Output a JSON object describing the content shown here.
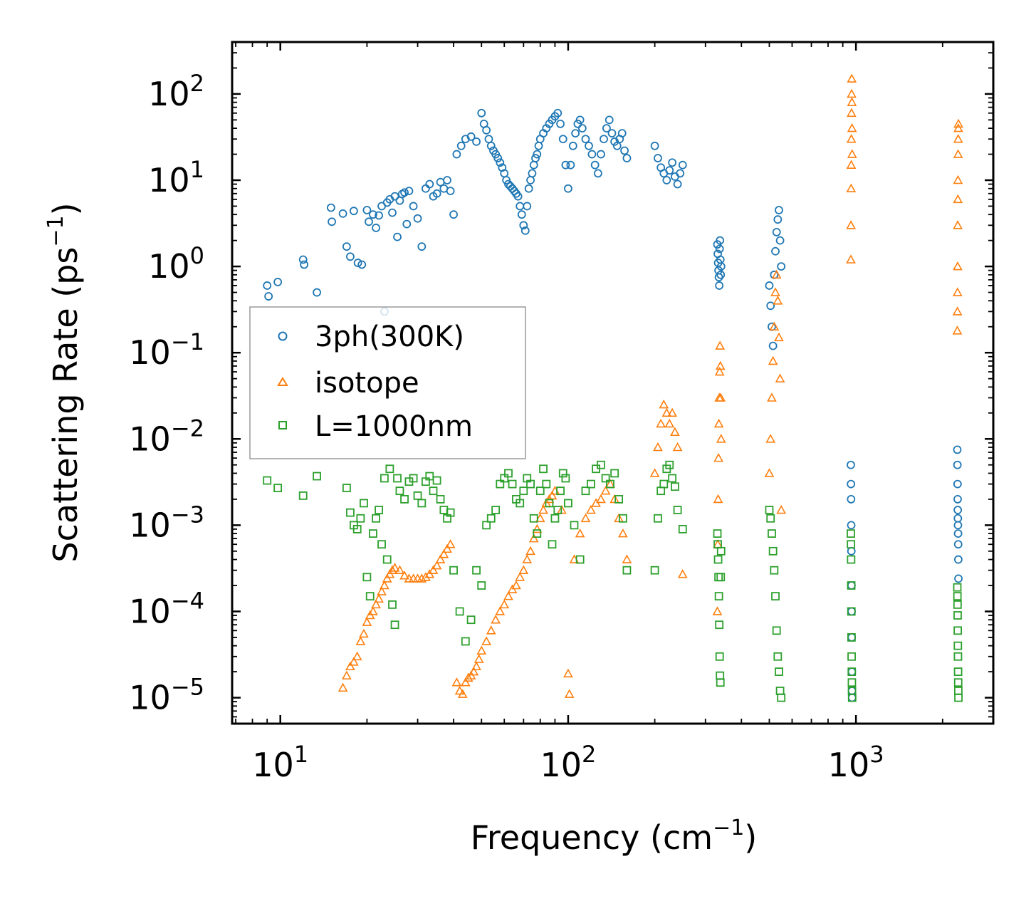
{
  "chart_data": {
    "type": "scatter",
    "title": "",
    "xlabel": "Frequency (cm$^{-1}$)",
    "xlabel_main": "Frequency (cm",
    "xlabel_sup": "−1",
    "xlabel_end": ")",
    "ylabel_main": "Scattering Rate (ps",
    "ylabel_sup": "−1",
    "ylabel_end": ")",
    "x_scale": "log",
    "y_scale": "log",
    "xlim": [
      6.8,
      3000
    ],
    "ylim": [
      5e-06,
      400
    ],
    "x_ticks": [
      {
        "base": "10",
        "exp": "1",
        "value": 10
      },
      {
        "base": "10",
        "exp": "2",
        "value": 100
      },
      {
        "base": "10",
        "exp": "3",
        "value": 1000
      }
    ],
    "y_ticks": [
      {
        "base": "10",
        "exp": "−5",
        "value": 1e-05
      },
      {
        "base": "10",
        "exp": "−4",
        "value": 0.0001
      },
      {
        "base": "10",
        "exp": "−3",
        "value": 0.001
      },
      {
        "base": "10",
        "exp": "−2",
        "value": 0.01
      },
      {
        "base": "10",
        "exp": "−1",
        "value": 0.1
      },
      {
        "base": "10",
        "exp": "0",
        "value": 1
      },
      {
        "base": "10",
        "exp": "1",
        "value": 10
      },
      {
        "base": "10",
        "exp": "2",
        "value": 100
      }
    ],
    "legend_position": "center-left",
    "series": [
      {
        "name": "3ph(300K)",
        "marker": "circle",
        "color": "#1f77b4",
        "x": [
          9.0,
          9.1,
          9.8,
          12.0,
          12.1,
          13.4,
          15.0,
          15.1,
          16.5,
          17.0,
          17.5,
          18.0,
          18.6,
          19.2,
          20.0,
          20.3,
          21.0,
          21.5,
          22.0,
          22.5,
          23.0,
          23.5,
          24.0,
          24.5,
          25.0,
          25.5,
          26.0,
          26.5,
          27.0,
          27.5,
          28.0,
          29.0,
          30.0,
          31.0,
          32.0,
          33.0,
          34.0,
          35.0,
          36.0,
          37.0,
          38.0,
          39.0,
          40.0,
          41.0,
          42.5,
          44.0,
          46.0,
          48.0,
          50.0,
          51.0,
          52.0,
          53.0,
          54.0,
          55.0,
          56.0,
          57.0,
          58.0,
          59.0,
          60.0,
          61.0,
          62.0,
          63.0,
          64.0,
          65.0,
          66.0,
          67.0,
          68.0,
          69.0,
          70.0,
          71.0,
          72.0,
          73.0,
          74.0,
          75.0,
          76.0,
          77.0,
          78.0,
          79.0,
          80.0,
          82.0,
          84.0,
          86.0,
          88.0,
          90.0,
          92.0,
          94.0,
          96.0,
          98.0,
          100.0,
          102.0,
          104.0,
          106.0,
          108.0,
          110.0,
          112.0,
          115.0,
          118.0,
          121.0,
          124.0,
          127.0,
          130.0,
          133.0,
          136.0,
          139.0,
          142.0,
          145.0,
          148.0,
          151.0,
          154.0,
          157.0,
          160.0,
          200.0,
          205.0,
          210.0,
          215.0,
          220.0,
          225.0,
          230.0,
          235.0,
          240.0,
          245.0,
          250.0,
          330.0,
          331.0,
          332.0,
          333.0,
          334.0,
          335.0,
          336.0,
          337.0,
          338.0,
          339.0,
          340.0,
          500.0,
          505.0,
          510.0,
          515.0,
          520.0,
          525.0,
          530.0,
          535.0,
          540.0,
          545.0,
          550.0,
          960.0,
          961.0,
          962.0,
          963.0,
          964.0,
          965.0,
          966.0,
          967.0,
          968.0,
          969.0,
          970.0,
          2250.0,
          2252.0,
          2254.0,
          2256.0,
          2258.0,
          2260.0,
          2262.0,
          2264.0,
          2266.0,
          2268.0,
          2270.0
        ],
        "y": [
          0.6,
          0.45,
          0.66,
          1.2,
          1.05,
          0.5,
          4.8,
          3.3,
          4.1,
          1.7,
          1.3,
          4.4,
          1.1,
          1.05,
          4.5,
          3.3,
          4.0,
          2.8,
          3.9,
          5.0,
          0.3,
          5.5,
          6.0,
          4.2,
          6.5,
          2.2,
          5.8,
          6.9,
          7.2,
          3.1,
          7.5,
          5.0,
          3.6,
          1.7,
          8.0,
          9.0,
          6.5,
          7.0,
          9.5,
          8.0,
          10.0,
          7.5,
          4.0,
          20.0,
          25.0,
          30.0,
          32.0,
          28.0,
          60.0,
          45.0,
          38.0,
          30.0,
          25.0,
          22.0,
          20.0,
          18.0,
          16.0,
          14.0,
          12.0,
          10.0,
          9.0,
          8.5,
          8.0,
          7.5,
          7.0,
          6.5,
          5.0,
          4.0,
          3.0,
          2.6,
          5.0,
          8.0,
          10.0,
          12.0,
          15.0,
          18.0,
          20.0,
          25.0,
          30.0,
          35.0,
          40.0,
          45.0,
          50.0,
          55.0,
          60.0,
          45.0,
          30.0,
          15.0,
          8.0,
          15.0,
          25.0,
          35.0,
          45.0,
          50.0,
          40.0,
          30.0,
          25.0,
          20.0,
          15.0,
          12.0,
          20.0,
          30.0,
          40.0,
          50.0,
          35.0,
          28.0,
          25.0,
          30.0,
          35.0,
          22.0,
          18.0,
          25.0,
          18.0,
          14.0,
          12.0,
          10.0,
          13.0,
          16.0,
          11.0,
          9.0,
          12.0,
          15.0,
          1.8,
          1.4,
          1.1,
          0.9,
          0.75,
          0.6,
          1.6,
          2.0,
          1.2,
          0.8,
          1.0,
          0.6,
          0.35,
          0.2,
          0.12,
          0.8,
          1.5,
          2.5,
          3.5,
          4.5,
          2.0,
          1.0,
          0.005,
          0.003,
          0.002,
          0.001,
          0.0005,
          0.0002,
          0.0001,
          5e-05,
          2e-05,
          1.2e-05,
          1e-05,
          0.0075,
          0.005,
          0.003,
          0.002,
          0.0015,
          0.0012,
          0.001,
          0.0008,
          0.0006,
          0.0004,
          0.00024
        ]
      },
      {
        "name": "isotope",
        "marker": "triangle",
        "color": "#ff7f0e",
        "x": [
          16.5,
          17.0,
          17.5,
          18.0,
          18.5,
          19.0,
          19.5,
          20.0,
          20.5,
          21.0,
          21.5,
          22.0,
          22.5,
          23.0,
          23.5,
          24.0,
          24.5,
          25.0,
          26.0,
          27.0,
          28.0,
          29.0,
          30.0,
          31.0,
          32.0,
          33.0,
          34.0,
          35.0,
          36.0,
          37.0,
          38.0,
          39.0,
          41.0,
          42.0,
          43.0,
          44.0,
          45.0,
          46.0,
          47.0,
          48.0,
          49.0,
          50.0,
          52.0,
          54.0,
          56.0,
          58.0,
          60.0,
          62.0,
          64.0,
          66.0,
          68.0,
          70.0,
          72.0,
          74.0,
          76.0,
          78.0,
          80.0,
          82.0,
          84.0,
          86.0,
          88.0,
          90.0,
          95.0,
          100.0,
          101.0,
          105.0,
          110.0,
          115.0,
          120.0,
          125.0,
          130.0,
          135.0,
          140.0,
          145.0,
          150.0,
          155.0,
          160.0,
          200.0,
          205.0,
          210.0,
          215.0,
          220.0,
          225.0,
          230.0,
          235.0,
          240.0,
          250.0,
          330.0,
          331.0,
          332.0,
          333.0,
          334.0,
          335.0,
          336.0,
          337.0,
          338.0,
          339.0,
          340.0,
          500.0,
          505.0,
          510.0,
          515.0,
          520.0,
          525.0,
          530.0,
          535.0,
          540.0,
          545.0,
          550.0,
          960.0,
          961.0,
          962.0,
          963.0,
          964.0,
          965.0,
          966.0,
          967.0,
          968.0,
          969.0,
          970.0,
          2250.0,
          2252.0,
          2254.0,
          2256.0,
          2258.0,
          2260.0,
          2262.0,
          2264.0,
          2266.0,
          2268.0,
          2270.0
        ],
        "y": [
          1.3e-05,
          1.8e-05,
          2.3e-05,
          2.6e-05,
          3e-05,
          4.5e-05,
          5.5e-05,
          7.5e-05,
          9e-05,
          0.0001,
          0.00012,
          0.00014,
          0.00017,
          0.0002,
          0.00024,
          0.00027,
          0.0003,
          0.00032,
          0.0003,
          0.00026,
          0.00024,
          0.00024,
          0.00024,
          0.00024,
          0.00025,
          0.00027,
          0.0003,
          0.00034,
          0.0004,
          0.00046,
          0.00053,
          0.0006,
          1.5e-05,
          1.2e-05,
          1.1e-05,
          1.5e-05,
          1.7e-05,
          1.8e-05,
          2e-05,
          2.3e-05,
          2.8e-05,
          3.5e-05,
          4.5e-05,
          6e-05,
          8e-05,
          0.0001,
          0.00012,
          0.00015,
          0.00018,
          0.0002,
          0.00025,
          0.0003,
          0.0004,
          0.0005,
          0.0007,
          0.0009,
          0.0012,
          0.0015,
          0.0018,
          0.002,
          0.0022,
          0.0025,
          0.0015,
          1.9e-05,
          1.1e-05,
          0.0004,
          0.0008,
          0.0012,
          0.0015,
          0.0018,
          0.002,
          0.0025,
          0.003,
          0.002,
          0.0012,
          0.0008,
          0.0004,
          0.004,
          0.008,
          0.015,
          0.025,
          0.02,
          0.015,
          0.02,
          0.012,
          0.008,
          0.00027,
          0.0001,
          0.0006,
          0.002,
          0.006,
          0.015,
          0.03,
          0.06,
          0.12,
          0.07,
          0.03,
          0.01,
          0.004,
          0.01,
          0.03,
          0.08,
          0.2,
          0.5,
          0.8,
          0.4,
          0.15,
          0.05,
          0.0015,
          1.2,
          3.0,
          8.0,
          15.0,
          30.0,
          60.0,
          100.0,
          150.0,
          80.0,
          40.0,
          20.0,
          0.18,
          0.3,
          0.5,
          1.0,
          3.0,
          6.0,
          10.0,
          20.0,
          30.0,
          40.0,
          45.0
        ]
      },
      {
        "name": "L=1000nm",
        "marker": "square",
        "color": "#2ca02c",
        "x": [
          9.0,
          9.8,
          12.0,
          13.4,
          17.0,
          17.5,
          18.0,
          18.5,
          19.0,
          19.5,
          20.0,
          20.5,
          21.0,
          21.5,
          22.0,
          22.5,
          23.0,
          23.5,
          24.0,
          24.5,
          25.0,
          25.5,
          26.0,
          27.0,
          28.0,
          29.0,
          30.0,
          31.0,
          32.0,
          33.0,
          34.0,
          35.0,
          36.0,
          37.0,
          38.0,
          39.0,
          40.0,
          42.0,
          44.0,
          46.0,
          48.0,
          50.0,
          52.0,
          54.0,
          56.0,
          58.0,
          60.0,
          62.0,
          64.0,
          66.0,
          68.0,
          70.0,
          72.0,
          74.0,
          76.0,
          78.0,
          80.0,
          82.0,
          84.0,
          86.0,
          88.0,
          90.0,
          92.0,
          94.0,
          96.0,
          98.0,
          100.0,
          105.0,
          110.0,
          115.0,
          120.0,
          125.0,
          130.0,
          135.0,
          140.0,
          145.0,
          150.0,
          155.0,
          160.0,
          200.0,
          205.0,
          210.0,
          215.0,
          220.0,
          225.0,
          230.0,
          235.0,
          240.0,
          250.0,
          330.0,
          331.0,
          332.0,
          333.0,
          334.0,
          335.0,
          336.0,
          337.0,
          338.0,
          339.0,
          340.0,
          500.0,
          505.0,
          510.0,
          515.0,
          520.0,
          525.0,
          530.0,
          535.0,
          540.0,
          545.0,
          550.0,
          960.0,
          961.0,
          962.0,
          963.0,
          964.0,
          965.0,
          966.0,
          967.0,
          968.0,
          969.0,
          970.0,
          2250.0,
          2252.0,
          2254.0,
          2256.0,
          2258.0,
          2260.0,
          2262.0,
          2264.0,
          2266.0,
          2268.0,
          2270.0
        ],
        "y": [
          0.0033,
          0.0027,
          0.0022,
          0.0037,
          0.0027,
          0.0014,
          0.001,
          0.0009,
          0.0012,
          0.0018,
          0.00025,
          0.00015,
          0.0008,
          0.0012,
          0.0015,
          0.0006,
          0.0035,
          0.0004,
          0.0045,
          0.00012,
          7e-05,
          0.0035,
          0.0025,
          0.002,
          0.0032,
          0.0035,
          0.0022,
          0.0018,
          0.0032,
          0.0037,
          0.0025,
          0.0033,
          0.002,
          0.0015,
          0.0012,
          0.0014,
          0.0003,
          0.0001,
          4.5e-05,
          8e-05,
          0.0003,
          0.0002,
          0.001,
          0.0012,
          0.0015,
          0.003,
          0.0035,
          0.004,
          0.003,
          0.002,
          0.0018,
          0.0025,
          0.0035,
          0.003,
          0.0012,
          0.0008,
          0.0025,
          0.0045,
          0.003,
          0.0018,
          0.0006,
          0.0012,
          0.0015,
          0.0025,
          0.004,
          0.0035,
          0.0018,
          0.001,
          0.0004,
          0.0025,
          0.003,
          0.0045,
          0.005,
          0.0035,
          0.003,
          0.004,
          0.002,
          0.0012,
          0.0003,
          0.0003,
          0.0012,
          0.0025,
          0.003,
          0.0045,
          0.005,
          0.0035,
          0.0028,
          0.0015,
          0.0009,
          0.0008,
          0.0006,
          0.0004,
          0.00025,
          0.00015,
          7e-05,
          3e-05,
          1.8e-05,
          1.5e-05,
          0.00025,
          0.0005,
          0.0015,
          0.0012,
          0.0008,
          0.0005,
          0.0003,
          0.00015,
          6e-05,
          3e-05,
          2e-05,
          1.2e-05,
          1e-05,
          0.0008,
          0.0006,
          0.0004,
          0.0002,
          0.0001,
          5e-05,
          3e-05,
          2e-05,
          1.5e-05,
          1.2e-05,
          1e-05,
          0.00019,
          0.00015,
          0.00012,
          9e-05,
          6e-05,
          4e-05,
          3e-05,
          2e-05,
          1.5e-05,
          1.2e-05,
          1e-05
        ]
      }
    ]
  }
}
